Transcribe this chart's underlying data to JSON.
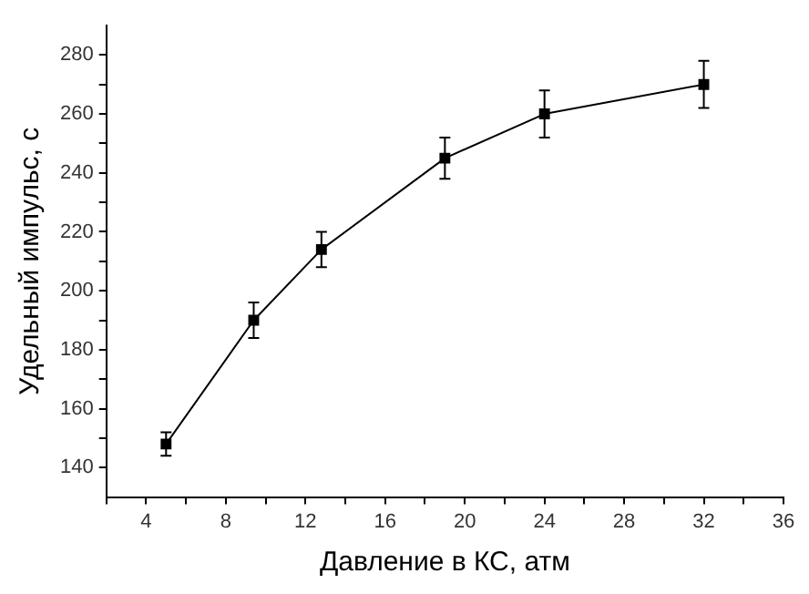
{
  "chart_data": {
    "type": "line",
    "xlabel": "Давление в КС, атм",
    "ylabel": "Удельный импульс, с",
    "x": [
      5,
      9.4,
      12.8,
      19,
      24,
      32
    ],
    "values": [
      148,
      190,
      214,
      245,
      260,
      270
    ],
    "errors": [
      4,
      6,
      6,
      7,
      8,
      8
    ],
    "color": "#000000",
    "marker": "square",
    "line_style": "solid",
    "grid": false,
    "legend": false,
    "xlim": [
      2,
      36
    ],
    "xticks": [
      {
        "value": 2,
        "label": null
      },
      4,
      {
        "value": 6,
        "label": null
      },
      8,
      {
        "value": 10,
        "label": null
      },
      12,
      {
        "value": 14,
        "label": null
      },
      16,
      {
        "value": 18,
        "label": null
      },
      20,
      {
        "value": 22,
        "label": null
      },
      24,
      {
        "value": 26,
        "label": null
      },
      28,
      {
        "value": 30,
        "label": null
      },
      32,
      {
        "value": 34,
        "label": null
      },
      36
    ],
    "ylim": [
      130,
      290
    ],
    "yticks": [
      140,
      {
        "value": 150,
        "label": null
      },
      160,
      {
        "value": 170,
        "label": null
      },
      180,
      {
        "value": 190,
        "label": null
      },
      200,
      {
        "value": 210,
        "label": null
      },
      220,
      {
        "value": 230,
        "label": null
      },
      240,
      {
        "value": 250,
        "label": null
      },
      260,
      {
        "value": 270,
        "label": null
      },
      280
    ]
  }
}
